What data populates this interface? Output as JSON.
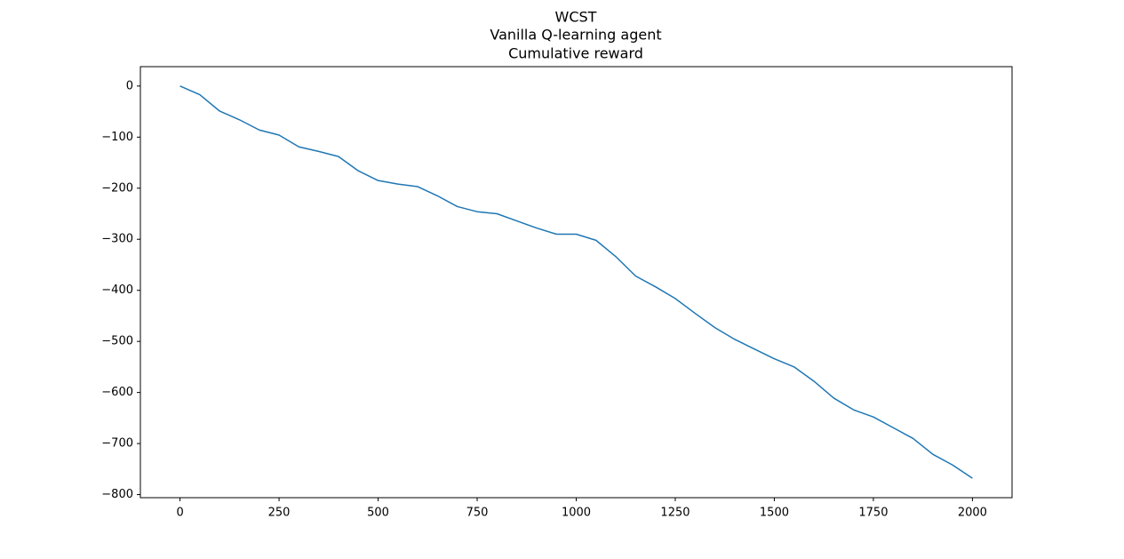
{
  "chart_data": {
    "type": "line",
    "title": [
      "WCST",
      "Vanilla Q-learning agent",
      "Cumulative reward"
    ],
    "x": [
      0,
      50,
      100,
      150,
      200,
      250,
      300,
      350,
      400,
      450,
      500,
      550,
      600,
      650,
      700,
      750,
      800,
      850,
      900,
      950,
      1000,
      1050,
      1100,
      1150,
      1200,
      1250,
      1300,
      1350,
      1400,
      1450,
      1500,
      1550,
      1600,
      1650,
      1700,
      1750,
      1800,
      1850,
      1900,
      1950,
      2000
    ],
    "series": [
      {
        "color": "#1f77b4",
        "values": [
          0,
          -17,
          -49,
          -66,
          -86,
          -96,
          -119,
          -128,
          -138,
          -166,
          -185,
          -192,
          -197,
          -215,
          -236,
          -246,
          -250,
          -264,
          -278,
          -290,
          -290,
          -302,
          -334,
          -372,
          -393,
          -416,
          -445,
          -473,
          -496,
          -515,
          -534,
          -550,
          -578,
          -611,
          -634,
          -648,
          -669,
          -690,
          -721,
          -742,
          -768
        ]
      }
    ],
    "xlim": [
      -100,
      2100
    ],
    "xticks": [
      0,
      250,
      500,
      750,
      1000,
      1250,
      1500,
      1750,
      2000
    ],
    "ylim": [
      -806,
      38
    ],
    "yticks": [
      {
        "value": -800,
        "label": "−800"
      },
      {
        "value": -700,
        "label": "−700"
      },
      {
        "value": -600,
        "label": "−600"
      },
      {
        "value": -500,
        "label": "−500"
      },
      {
        "value": -400,
        "label": "−400"
      },
      {
        "value": -300,
        "label": "−300"
      },
      {
        "value": -200,
        "label": "−200"
      },
      {
        "value": -100,
        "label": "−100"
      },
      0
    ],
    "grid": false
  }
}
